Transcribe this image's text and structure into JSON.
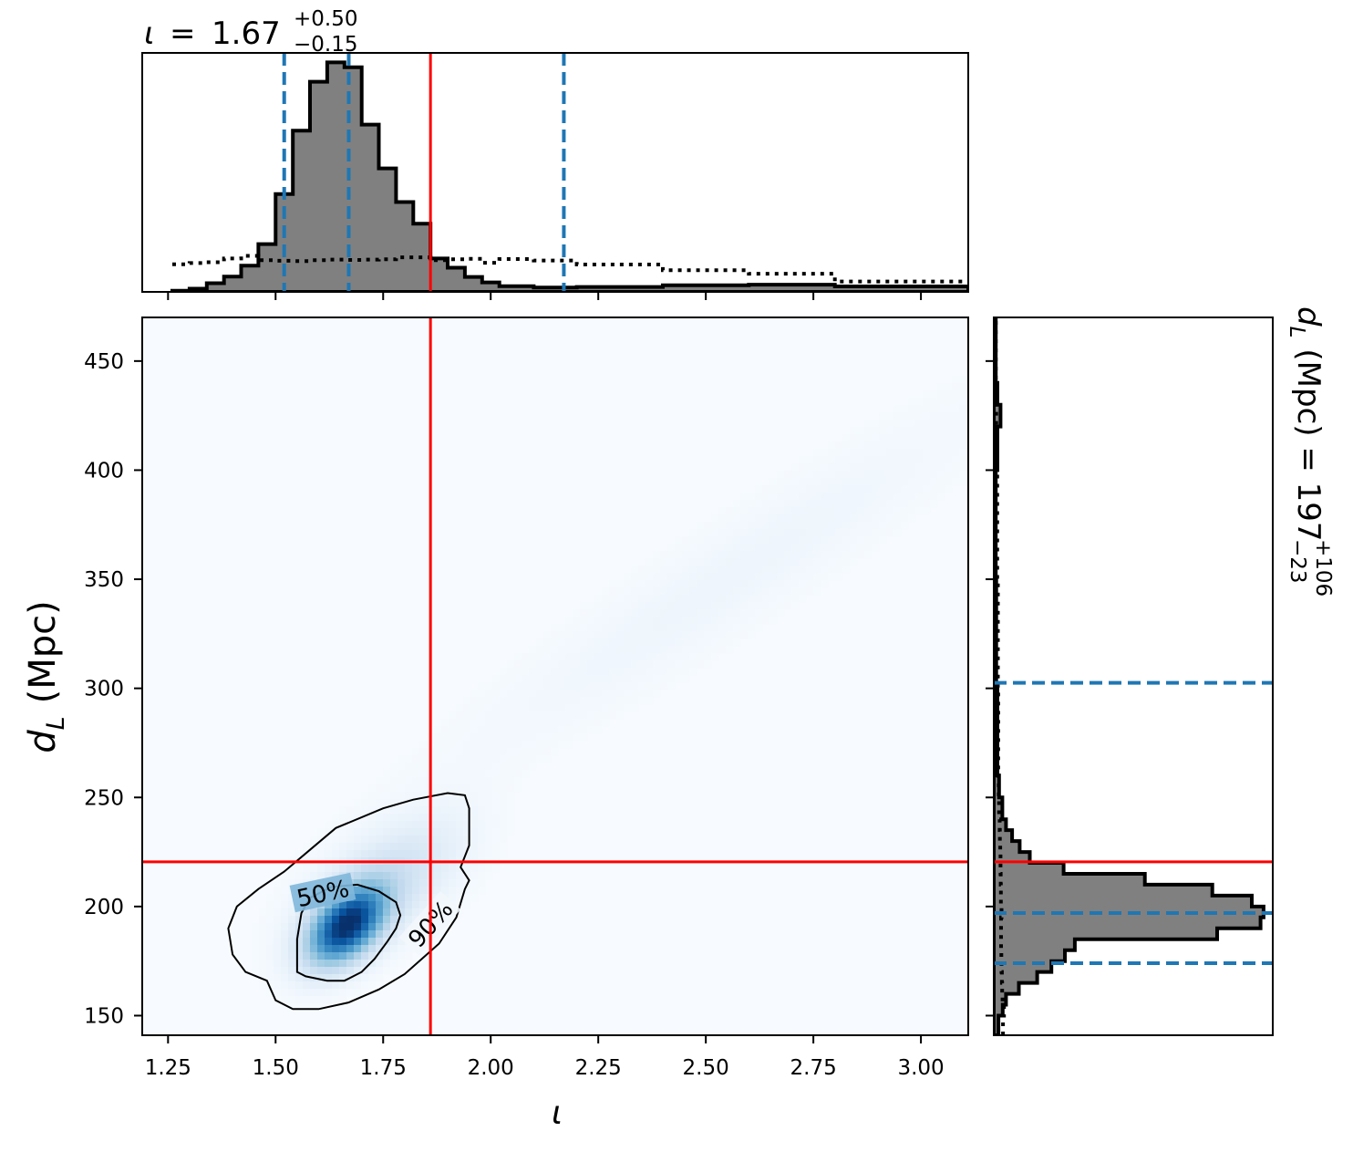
{
  "chart_data": {
    "type": "corner",
    "parameters": [
      "iota",
      "dL"
    ],
    "titles": {
      "top": {
        "symbol": "ι",
        "median": "1.67",
        "plus": "+0.50",
        "minus": "−0.15"
      },
      "right": {
        "symbol": "d",
        "sub": "L",
        "unit": "(Mpc) = ",
        "median": "197",
        "plus": "+106",
        "minus": "−23"
      }
    },
    "axes": {
      "x": {
        "label_symbol": "ι",
        "lim": [
          1.19,
          3.11
        ],
        "ticks": [
          1.25,
          1.5,
          1.75,
          2.0,
          2.25,
          2.5,
          2.75,
          3.0
        ],
        "tick_labels": [
          "1.25",
          "1.50",
          "1.75",
          "2.00",
          "2.25",
          "2.50",
          "2.75",
          "3.00"
        ]
      },
      "y": {
        "label_symbol": "d",
        "label_sub": "L",
        "label_unit": "(Mpc)",
        "lim": [
          141,
          470
        ],
        "ticks": [
          150,
          200,
          250,
          300,
          350,
          400,
          450
        ],
        "tick_labels": [
          "150",
          "200",
          "250",
          "300",
          "350",
          "400",
          "450"
        ]
      }
    },
    "injection": {
      "iota": 1.86,
      "dL": 220.5,
      "color": "#ff0000"
    },
    "quantiles": {
      "iota": [
        1.52,
        1.67,
        2.17
      ],
      "dL": [
        174,
        197,
        302.5
      ],
      "color": "#1f77b4"
    },
    "iota_hist": {
      "bins": [
        1.26,
        1.3,
        1.34,
        1.38,
        1.42,
        1.46,
        1.5,
        1.54,
        1.58,
        1.62,
        1.66,
        1.7,
        1.74,
        1.78,
        1.82,
        1.86,
        1.9,
        1.94,
        1.98,
        2.02,
        2.1,
        2.2,
        2.4,
        2.6,
        2.8,
        3.11
      ],
      "counts": [
        0.4,
        1.1,
        3.0,
        5.3,
        9.1,
        16.6,
        34.0,
        56.0,
        73.0,
        79.7,
        78.0,
        58.1,
        42.9,
        31.2,
        23.7,
        11.6,
        8.4,
        5.2,
        3.3,
        2.0,
        1.5,
        1.7,
        2.3,
        2.5,
        1.9
      ],
      "prior": [
        9.6,
        10.0,
        10.3,
        11.6,
        12.5,
        11.0,
        10.8,
        10.7,
        11.0,
        11.2,
        11.1,
        11.2,
        11.3,
        12.0,
        12.0,
        11.0,
        11.3,
        11.5,
        10.1,
        11.4,
        10.9,
        9.5,
        7.5,
        6.3,
        3.6
      ],
      "ymax": 83,
      "fill": "#808080"
    },
    "dL_hist": {
      "bins": [
        141,
        150,
        155,
        160,
        165,
        170,
        175,
        180,
        185,
        190,
        195,
        200,
        205,
        210,
        215,
        220,
        225,
        230,
        235,
        240,
        250,
        260,
        300,
        350,
        400,
        420,
        430,
        440,
        470
      ],
      "counts": [
        2.3,
        4.4,
        6.0,
        12.3,
        21.3,
        28.3,
        34.9,
        39.8,
        109.7,
        131.0,
        132.5,
        126.7,
        107.3,
        74.2,
        34.3,
        17.7,
        12.7,
        9.0,
        6.0,
        4.2,
        2.6,
        1.8,
        1.2,
        1.0,
        1.8,
        3.3,
        1.8,
        1.0
      ],
      "prior": [
        4.5,
        5.0,
        4.3,
        4.1,
        4.0,
        3.8,
        3.7,
        3.6,
        3.6,
        3.6,
        3.8,
        3.5,
        3.5,
        3.4,
        3.3,
        3.3,
        3.2,
        3.0,
        2.9,
        2.6,
        2.4,
        2.2,
        2.0,
        1.7,
        1.4,
        1.2,
        1.1,
        1.0
      ],
      "xmax": 137,
      "fill": "#808080"
    },
    "density": {
      "colormap": "Blues",
      "blobs": [
        {
          "x": 1.665,
          "y": 191,
          "sx": 0.06,
          "sy": 12,
          "rho": 0.45,
          "w": 1.0
        },
        {
          "x": 1.75,
          "y": 210,
          "sx": 0.12,
          "sy": 20,
          "rho": 0.6,
          "w": 0.22
        },
        {
          "x": 2.55,
          "y": 350,
          "sx": 0.45,
          "sy": 60,
          "rho": 0.95,
          "w": 0.05
        }
      ],
      "contours": [
        {
          "label": "50%",
          "label_at": [
            1.61,
            206
          ],
          "label_angle": -12,
          "points": [
            [
              1.55,
              170
            ],
            [
              1.57,
              168
            ],
            [
              1.62,
              166
            ],
            [
              1.66,
              166
            ],
            [
              1.7,
              170
            ],
            [
              1.73,
              176
            ],
            [
              1.76,
              184
            ],
            [
              1.78,
              190
            ],
            [
              1.79,
              196
            ],
            [
              1.78,
              202
            ],
            [
              1.74,
              207
            ],
            [
              1.69,
              210
            ],
            [
              1.63,
              209
            ],
            [
              1.58,
              204
            ],
            [
              1.56,
              197
            ],
            [
              1.55,
              185
            ],
            [
              1.55,
              177
            ]
          ]
        },
        {
          "label": "90%",
          "label_at": [
            1.86,
            192
          ],
          "label_angle": -48,
          "points": [
            [
              1.43,
              170
            ],
            [
              1.48,
              166
            ],
            [
              1.5,
              157
            ],
            [
              1.54,
              153
            ],
            [
              1.6,
              153
            ],
            [
              1.67,
              156
            ],
            [
              1.74,
              162
            ],
            [
              1.8,
              169
            ],
            [
              1.84,
              176
            ],
            [
              1.88,
              183
            ],
            [
              1.92,
              195
            ],
            [
              1.94,
              208
            ],
            [
              1.95,
              212
            ],
            [
              1.93,
              218
            ],
            [
              1.95,
              228
            ],
            [
              1.95,
              245
            ],
            [
              1.94,
              251
            ],
            [
              1.9,
              252
            ],
            [
              1.82,
              249
            ],
            [
              1.75,
              245
            ],
            [
              1.64,
              236
            ],
            [
              1.58,
              226
            ],
            [
              1.52,
              216
            ],
            [
              1.46,
              208
            ],
            [
              1.41,
              200
            ],
            [
              1.39,
              190
            ],
            [
              1.4,
              178
            ]
          ]
        }
      ]
    }
  }
}
